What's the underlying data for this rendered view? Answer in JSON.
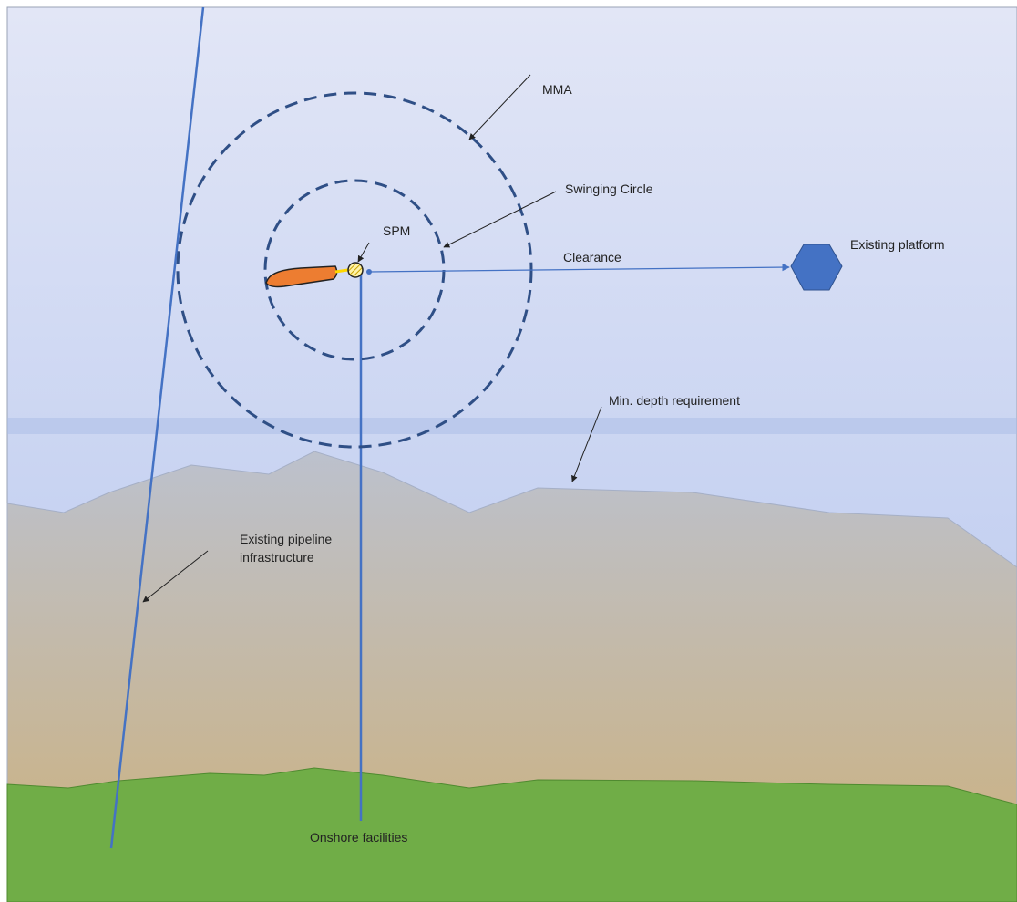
{
  "labels": {
    "mma": "MMA",
    "swinging_circle": "Swinging Circle",
    "spm": "SPM",
    "clearance": "Clearance",
    "existing_platform": "Existing platform",
    "min_depth": "Min. depth requirement",
    "pipeline": [
      "Existing pipeline",
      "infrastructure"
    ],
    "onshore": "Onshore facilities"
  }
}
